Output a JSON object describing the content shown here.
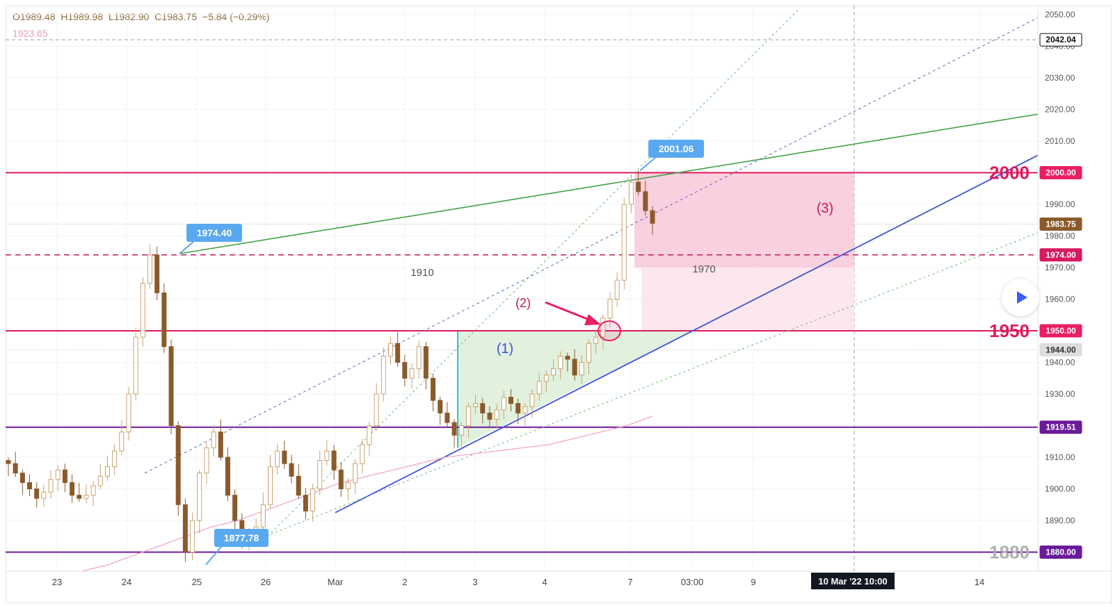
{
  "ohlc": {
    "open": "O1989.48",
    "high": "H1989.98",
    "low": "L1982.90",
    "close": "C1983.75",
    "change": "−5.84 (−0.29%)"
  },
  "ma_value": "1923.65",
  "price_scale": {
    "ticks": [
      "2050.00",
      "2040.00",
      "2030.00",
      "2020.00",
      "2010.00",
      "2000.00",
      "1990.00",
      "1980.00",
      "1970.00",
      "1960.00",
      "1950.00",
      "1940.00",
      "1930.00",
      "1920.00",
      "1910.00",
      "1900.00",
      "1890.00",
      "1880.00"
    ],
    "badges": [
      {
        "price": 2042.04,
        "text": "2042.04",
        "bg": "#ffffff",
        "fg": "#111111",
        "border": "#111111"
      },
      {
        "price": 2000.0,
        "text": "2000.00",
        "bg": "#e91e63",
        "fg": "#ffffff",
        "border": "#e91e63"
      },
      {
        "price": 1983.75,
        "text": "1983.75",
        "bg": "#8b5a2b",
        "fg": "#ffffff",
        "border": "#8b5a2b"
      },
      {
        "price": 1974.0,
        "text": "1974.00",
        "bg": "#d81b60",
        "fg": "#ffffff",
        "border": "#d81b60"
      },
      {
        "price": 1950.0,
        "text": "1950.00",
        "bg": "#e91e63",
        "fg": "#ffffff",
        "border": "#e91e63"
      },
      {
        "price": 1944.0,
        "text": "1944.00",
        "bg": "#dddddd",
        "fg": "#333333",
        "border": "#dddddd"
      },
      {
        "price": 1919.51,
        "text": "1919.51",
        "bg": "#6a1b9a",
        "fg": "#ffffff",
        "border": "#6a1b9a"
      },
      {
        "price": 1880.0,
        "text": "1880.00",
        "bg": "#6a1b9a",
        "fg": "#ffffff",
        "border": "#6a1b9a"
      }
    ]
  },
  "time_scale": {
    "ticks": [
      "23",
      "24",
      "25",
      "26",
      "Mar",
      "2",
      "3",
      "4",
      "7",
      "03:00",
      "9",
      "14"
    ],
    "crosshair_label": "10 Mar '22   10:00"
  },
  "annotations": {
    "big_levels": [
      "2000",
      "1950",
      "1880"
    ],
    "callouts": [
      "2001.06",
      "1974.40",
      "1877.78"
    ],
    "wave_labels": [
      "(1)",
      "(2)",
      "(3)"
    ],
    "range_labels": [
      "1910",
      "1970"
    ]
  },
  "chart_data": {
    "type": "candlestick",
    "title": "",
    "xlabel": "",
    "ylabel": "",
    "ylim": [
      1872,
      2052
    ],
    "x_ticks": [
      "23",
      "24",
      "25",
      "26",
      "Mar",
      "2",
      "3",
      "4",
      "7",
      "03:00",
      "9",
      "14"
    ],
    "horizontal_levels": [
      2000,
      1974,
      1950,
      1919.51,
      1880
    ],
    "price_line": 1983.75,
    "close_series": [
      1908,
      1905,
      1902,
      1900,
      1897,
      1899,
      1903,
      1906,
      1902,
      1898,
      1897,
      1898,
      1901,
      1904,
      1907,
      1912,
      1918,
      1930,
      1948,
      1965,
      1974,
      1962,
      1945,
      1920,
      1895,
      1880,
      1890,
      1905,
      1913,
      1918,
      1910,
      1898,
      1890,
      1884,
      1886,
      1888,
      1895,
      1907,
      1912,
      1908,
      1904,
      1898,
      1893,
      1900,
      1909,
      1912,
      1906,
      1900,
      1902,
      1908,
      1914,
      1920,
      1930,
      1942,
      1946,
      1940,
      1935,
      1938,
      1945,
      1935,
      1928,
      1924,
      1921,
      1917,
      1920,
      1926,
      1927,
      1924,
      1922,
      1925,
      1929,
      1927,
      1924,
      1926,
      1930,
      1934,
      1936,
      1938,
      1942,
      1941,
      1936,
      1940,
      1946,
      1948,
      1954,
      1960,
      1966,
      1990,
      1997,
      1994,
      1988,
      1984
    ],
    "ma_series": [
      1874,
      1876,
      1879,
      1882,
      1885,
      1888,
      1890,
      1893,
      1896,
      1899,
      1902,
      1904,
      1906,
      1908,
      1910,
      1911,
      1912,
      1913,
      1914,
      1916,
      1918,
      1920,
      1923
    ],
    "series": [
      {
        "name": "1923.65",
        "color": "#f4a7c4"
      }
    ],
    "callouts": [
      {
        "label": "2001.06",
        "value": 2001.06
      },
      {
        "label": "1974.40",
        "value": 1974.4
      },
      {
        "label": "1877.78",
        "value": 1877.78
      }
    ]
  }
}
